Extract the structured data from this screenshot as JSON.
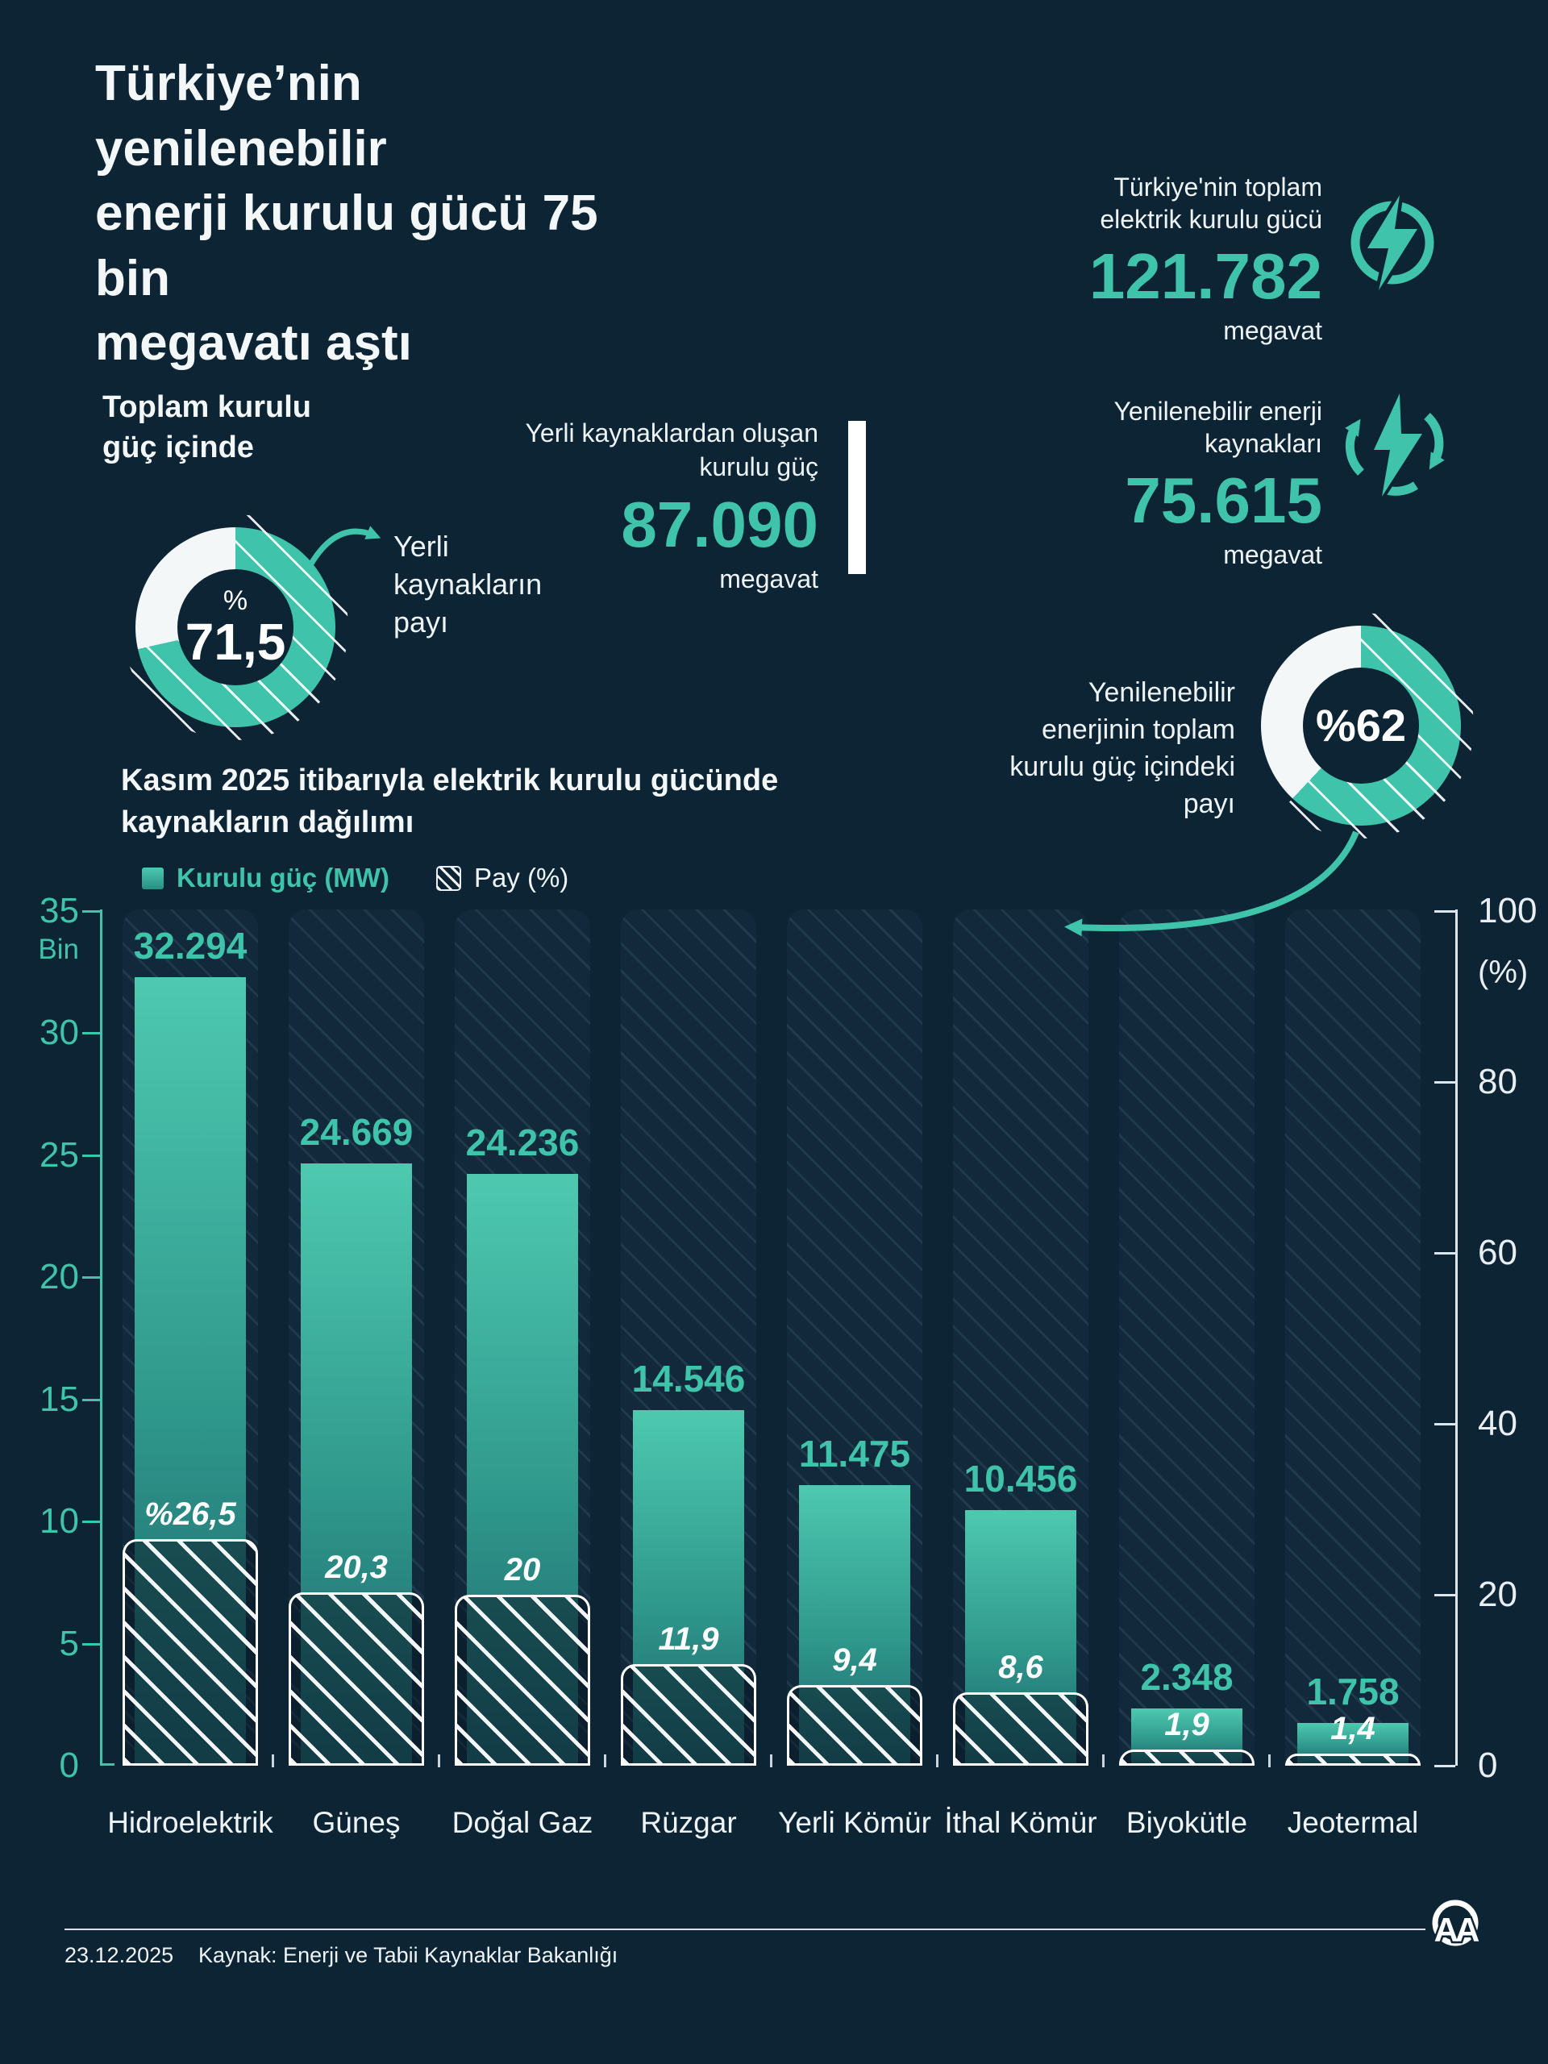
{
  "colors": {
    "background": "#0c2433",
    "accent_teal": "#3fc3ab",
    "white": "#f2f6f8",
    "bar_gradient_top": "#4ec9b0",
    "bar_gradient_bottom": "#1c6168"
  },
  "title": "Türkiye’nin yenilenebilir\nenerji kurulu gücü 75 bin\nmegavatı aştı",
  "stats": {
    "total": {
      "label": "Türkiye'nin toplam\nelektrik kurulu gücü",
      "value": "121.782",
      "unit": "megavat",
      "icon": "lightning-circle"
    },
    "renewable": {
      "label": "Yenilenebilir enerji\nkaynakları",
      "value": "75.615",
      "unit": "megavat",
      "icon": "lightning-recycle"
    },
    "domestic": {
      "label": "Yerli kaynaklardan oluşan\nkurulu güç",
      "value": "87.090",
      "unit": "megavat"
    }
  },
  "donut_domestic": {
    "heading": "Toplam kurulu\ngüç içinde",
    "percent_sign": "%",
    "value_label": "71,5",
    "value_pct": 71.5,
    "callout": "Yerli\nkaynakların\npayı"
  },
  "donut_renewable": {
    "value_label": "%62",
    "value_pct": 62,
    "callout": "Yenilenebilir\nenerjinin toplam\nkurulu güç içindeki\npayı"
  },
  "chart_data": {
    "type": "bar",
    "title": "Kasım 2025 itibarıyla elektrik kurulu gücünde\nkaynakların dağılımı",
    "legend": [
      {
        "label": "Kurulu güç (MW)",
        "style": "solid"
      },
      {
        "label": "Pay (%)",
        "style": "hatch"
      }
    ],
    "categories": [
      "Hidroelektrik",
      "Güneş",
      "Doğal Gaz",
      "Rüzgar",
      "Yerli Kömür",
      "İthal Kömür",
      "Biyokütle",
      "Jeotermal"
    ],
    "series": [
      {
        "name": "Kurulu güç (MW)",
        "values": [
          32294,
          24669,
          24236,
          14546,
          11475,
          10456,
          2348,
          1758
        ],
        "labels": [
          "32.294",
          "24.669",
          "24.236",
          "14.546",
          "11.475",
          "10.456",
          "2.348",
          "1.758"
        ]
      },
      {
        "name": "Pay (%)",
        "values": [
          26.5,
          20.3,
          20,
          11.9,
          9.4,
          8.6,
          1.9,
          1.4
        ],
        "labels": [
          "%26,5",
          "20,3",
          "20",
          "11,9",
          "9,4",
          "8,6",
          "1,9",
          "1,4"
        ]
      }
    ],
    "left_axis": {
      "ticks": [
        "35",
        "30",
        "25",
        "20",
        "15",
        "10",
        "5",
        "0"
      ],
      "tick_values": [
        35,
        30,
        25,
        20,
        15,
        10,
        5,
        0
      ],
      "unit": "Bin",
      "max": 35000
    },
    "right_axis": {
      "ticks": [
        "100",
        "80",
        "60",
        "40",
        "20",
        "0"
      ],
      "tick_values": [
        100,
        80,
        60,
        40,
        20,
        0
      ],
      "unit": "(%)",
      "max": 100
    },
    "grid": false,
    "legend_position": "top-left"
  },
  "footer": {
    "date": "23.12.2025",
    "source": "Kaynak: Enerji ve Tabii Kaynaklar Bakanlığı",
    "logo": "AA"
  }
}
